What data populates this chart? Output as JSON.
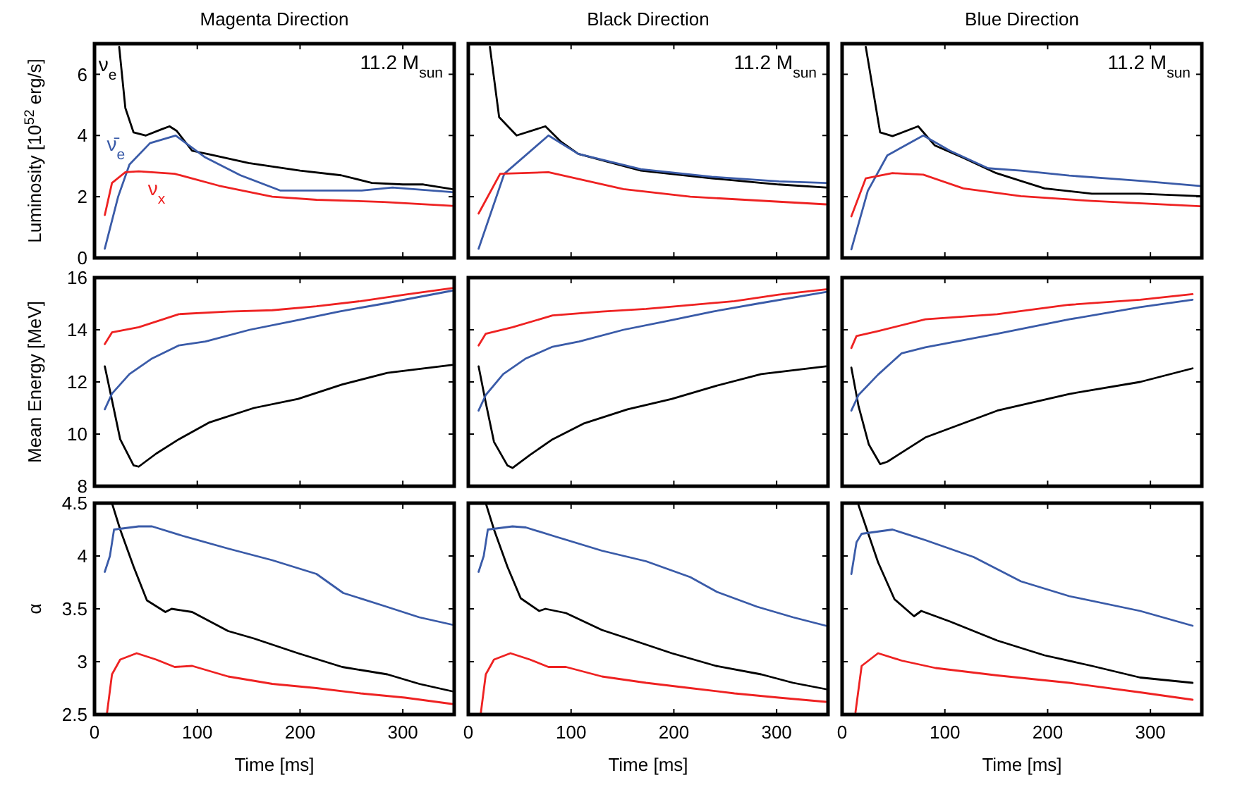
{
  "chart_data": [
    {
      "type": "line",
      "title": "Magenta Direction",
      "ylabel": "Luminosity [10$^{52}$ erg/s]",
      "annotations": [
        "11.2 M$_{sun}$"
      ],
      "xlim": [
        0,
        350
      ],
      "xticks": [
        0,
        100,
        200,
        300
      ],
      "ylim": [
        0,
        7
      ],
      "yticks": [
        0,
        2,
        4,
        6
      ],
      "tick_labels": "y",
      "series": [
        {
          "name": "ν$_{e}$",
          "color": "#000000",
          "x": [
            24,
            30,
            38,
            50,
            65,
            73,
            80,
            95,
            112,
            150,
            200,
            240,
            270,
            300,
            320,
            348
          ],
          "values": [
            6.9,
            4.9,
            4.1,
            4.0,
            4.2,
            4.3,
            4.15,
            3.5,
            3.38,
            3.1,
            2.85,
            2.7,
            2.45,
            2.4,
            2.4,
            2.25
          ]
        },
        {
          "name": "ν̄$_{e}$",
          "color": "#3a5ba8",
          "x": [
            10,
            23,
            34,
            54,
            79,
            107,
            142,
            181,
            216,
            260,
            290,
            348
          ],
          "values": [
            0.3,
            2.0,
            3.05,
            3.75,
            4.0,
            3.3,
            2.7,
            2.2,
            2.2,
            2.2,
            2.3,
            2.15
          ]
        },
        {
          "name": "ν$_{x}$",
          "color": "#ee2222",
          "x": [
            10,
            17,
            30,
            43,
            78,
            121,
            173,
            216,
            281,
            348
          ],
          "values": [
            1.4,
            2.45,
            2.8,
            2.83,
            2.75,
            2.36,
            2.0,
            1.9,
            1.83,
            1.7
          ]
        }
      ]
    },
    {
      "type": "line",
      "title": "Black Direction",
      "annotations": [
        "11.2 M$_{sun}$"
      ],
      "xlim": [
        0,
        350
      ],
      "xticks": [
        0,
        100,
        200,
        300
      ],
      "ylim": [
        0,
        7
      ],
      "yticks": [
        0,
        2,
        4,
        6
      ],
      "tick_labels": false,
      "series": [
        {
          "color": "#000000",
          "x": [
            21,
            30,
            47,
            75,
            90,
            107,
            168,
            237,
            302,
            348
          ],
          "values": [
            6.9,
            4.6,
            4.0,
            4.3,
            3.8,
            3.4,
            2.85,
            2.6,
            2.4,
            2.3
          ]
        },
        {
          "color": "#3a5ba8",
          "x": [
            10,
            35,
            78,
            107,
            168,
            237,
            302,
            348
          ],
          "values": [
            0.3,
            2.75,
            4.0,
            3.4,
            2.9,
            2.65,
            2.5,
            2.45
          ]
        },
        {
          "color": "#ee2222",
          "x": [
            10,
            31,
            78,
            151,
            216,
            348
          ],
          "values": [
            1.45,
            2.75,
            2.8,
            2.25,
            2.0,
            1.75
          ]
        }
      ]
    },
    {
      "type": "line",
      "title": "Blue Direction",
      "annotations": [
        "11.2 M$_{sun}$"
      ],
      "xlim": [
        0,
        350
      ],
      "xticks": [
        0,
        100,
        200,
        300
      ],
      "ylim": [
        0,
        7
      ],
      "yticks": [
        0,
        2,
        4,
        6
      ],
      "tick_labels": false,
      "series": [
        {
          "color": "#000000",
          "x": [
            23,
            37,
            49,
            74,
            90,
            118,
            150,
            197,
            243,
            290,
            348
          ],
          "values": [
            6.9,
            4.1,
            3.98,
            4.3,
            3.68,
            3.27,
            2.77,
            2.27,
            2.1,
            2.1,
            2.02
          ]
        },
        {
          "color": "#3a5ba8",
          "x": [
            9,
            25,
            44,
            79,
            105,
            142,
            174,
            221,
            290,
            348
          ],
          "values": [
            0.28,
            2.19,
            3.35,
            4.0,
            3.5,
            2.93,
            2.85,
            2.69,
            2.52,
            2.35
          ]
        },
        {
          "color": "#ee2222",
          "x": [
            9,
            23,
            49,
            79,
            118,
            174,
            243,
            348
          ],
          "values": [
            1.36,
            2.6,
            2.77,
            2.72,
            2.27,
            2.02,
            1.86,
            1.69
          ]
        }
      ]
    },
    {
      "type": "line",
      "ylabel": "Mean Energy [MeV]",
      "xlim": [
        0,
        350
      ],
      "xticks": [
        0,
        100,
        200,
        300
      ],
      "ylim": [
        8,
        16
      ],
      "yticks": [
        8,
        10,
        12,
        14,
        16
      ],
      "tick_labels": "y",
      "series": [
        {
          "color": "#000000",
          "x": [
            10,
            17,
            25,
            38,
            43,
            60,
            82,
            112,
            155,
            198,
            241,
            285,
            348
          ],
          "values": [
            12.6,
            11.3,
            9.8,
            8.8,
            8.75,
            9.25,
            9.8,
            10.45,
            11.0,
            11.35,
            11.9,
            12.35,
            12.65
          ]
        },
        {
          "color": "#3a5ba8",
          "x": [
            10,
            17,
            34,
            56,
            82,
            108,
            151,
            195,
            238,
            281,
            348
          ],
          "values": [
            10.95,
            11.55,
            12.3,
            12.9,
            13.4,
            13.55,
            14.0,
            14.35,
            14.7,
            15.0,
            15.5
          ]
        },
        {
          "color": "#ee2222",
          "x": [
            10,
            17,
            43,
            82,
            130,
            173,
            216,
            259,
            302,
            348
          ],
          "values": [
            13.45,
            13.9,
            14.1,
            14.6,
            14.7,
            14.75,
            14.9,
            15.1,
            15.35,
            15.6
          ]
        }
      ]
    },
    {
      "type": "line",
      "xlim": [
        0,
        350
      ],
      "xticks": [
        0,
        100,
        200,
        300
      ],
      "ylim": [
        8,
        16
      ],
      "yticks": [
        8,
        10,
        12,
        14,
        16
      ],
      "tick_labels": false,
      "series": [
        {
          "color": "#000000",
          "x": [
            10,
            17,
            25,
            38,
            43,
            60,
            82,
            112,
            155,
            198,
            241,
            285,
            348
          ],
          "values": [
            12.6,
            11.2,
            9.7,
            8.8,
            8.7,
            9.2,
            9.8,
            10.4,
            10.95,
            11.35,
            11.85,
            12.3,
            12.6
          ]
        },
        {
          "color": "#3a5ba8",
          "x": [
            10,
            17,
            34,
            56,
            82,
            108,
            151,
            195,
            238,
            281,
            348
          ],
          "values": [
            10.9,
            11.5,
            12.3,
            12.9,
            13.35,
            13.55,
            14.0,
            14.35,
            14.7,
            15.0,
            15.45
          ]
        },
        {
          "color": "#ee2222",
          "x": [
            10,
            17,
            43,
            82,
            130,
            173,
            216,
            259,
            302,
            348
          ],
          "values": [
            13.4,
            13.85,
            14.1,
            14.55,
            14.7,
            14.8,
            14.95,
            15.1,
            15.35,
            15.55
          ]
        }
      ]
    },
    {
      "type": "line",
      "xlim": [
        0,
        350
      ],
      "xticks": [
        0,
        100,
        200,
        300
      ],
      "ylim": [
        8,
        16
      ],
      "yticks": [
        8,
        10,
        12,
        14,
        16
      ],
      "tick_labels": false,
      "series": [
        {
          "color": "#000000",
          "x": [
            9,
            16,
            26,
            37,
            44,
            81,
            151,
            221,
            290,
            341
          ],
          "values": [
            12.55,
            11.07,
            9.6,
            8.85,
            8.94,
            9.87,
            10.9,
            11.54,
            12.0,
            12.52
          ]
        },
        {
          "color": "#3a5ba8",
          "x": [
            9,
            16,
            35,
            58,
            81,
            151,
            221,
            290,
            341
          ],
          "values": [
            10.9,
            11.5,
            12.28,
            13.1,
            13.33,
            13.85,
            14.4,
            14.87,
            15.15
          ]
        },
        {
          "color": "#ee2222",
          "x": [
            9,
            14,
            35,
            81,
            151,
            221,
            290,
            341
          ],
          "values": [
            13.3,
            13.76,
            13.95,
            14.4,
            14.6,
            14.96,
            15.15,
            15.37
          ]
        }
      ]
    },
    {
      "type": "line",
      "ylabel": "α",
      "xlabel": "Time [ms]",
      "xlim": [
        0,
        350
      ],
      "xticks": [
        0,
        100,
        200,
        300
      ],
      "ylim": [
        2.5,
        4.5
      ],
      "yticks": [
        2.5,
        3,
        3.5,
        4,
        4.5
      ],
      "series": [
        {
          "color": "#000000",
          "x": [
            17,
            25,
            38,
            51,
            69,
            75,
            95,
            130,
            155,
            198,
            241,
            285,
            316,
            348
          ],
          "values": [
            4.5,
            4.25,
            3.9,
            3.58,
            3.47,
            3.5,
            3.47,
            3.29,
            3.22,
            3.08,
            2.95,
            2.88,
            2.79,
            2.72
          ]
        },
        {
          "color": "#3a5ba8",
          "x": [
            10,
            15,
            19,
            43,
            56,
            86,
            130,
            173,
            216,
            242,
            281,
            316,
            348
          ],
          "values": [
            3.85,
            4.0,
            4.25,
            4.28,
            4.28,
            4.19,
            4.07,
            3.96,
            3.83,
            3.65,
            3.53,
            3.42,
            3.35
          ]
        },
        {
          "color": "#ee2222",
          "x": [
            12,
            17,
            25,
            41,
            60,
            78,
            95,
            130,
            173,
            216,
            259,
            302,
            348
          ],
          "values": [
            2.5,
            2.88,
            3.02,
            3.08,
            3.02,
            2.95,
            2.96,
            2.86,
            2.79,
            2.75,
            2.7,
            2.66,
            2.6
          ]
        }
      ]
    },
    {
      "type": "line",
      "xlabel": "Time [ms]",
      "xlim": [
        0,
        350
      ],
      "xticks": [
        0,
        100,
        200,
        300
      ],
      "ylim": [
        2.5,
        4.5
      ],
      "yticks": [
        2.5,
        3,
        3.5,
        4,
        4.5
      ],
      "tick_labels": "x",
      "series": [
        {
          "color": "#000000",
          "x": [
            17,
            25,
            38,
            51,
            69,
            75,
            95,
            130,
            155,
            198,
            241,
            285,
            316,
            348
          ],
          "values": [
            4.5,
            4.25,
            3.9,
            3.6,
            3.48,
            3.5,
            3.46,
            3.3,
            3.22,
            3.08,
            2.96,
            2.88,
            2.8,
            2.74
          ]
        },
        {
          "color": "#3a5ba8",
          "x": [
            10,
            15,
            19,
            43,
            56,
            86,
            130,
            173,
            216,
            242,
            281,
            316,
            348
          ],
          "values": [
            3.85,
            4.0,
            4.25,
            4.28,
            4.27,
            4.18,
            4.05,
            3.95,
            3.8,
            3.66,
            3.52,
            3.42,
            3.34
          ]
        },
        {
          "color": "#ee2222",
          "x": [
            12,
            17,
            25,
            41,
            60,
            78,
            95,
            130,
            173,
            216,
            259,
            302,
            348
          ],
          "values": [
            2.5,
            2.88,
            3.02,
            3.08,
            3.02,
            2.95,
            2.95,
            2.86,
            2.8,
            2.75,
            2.7,
            2.66,
            2.62
          ]
        }
      ]
    },
    {
      "type": "line",
      "xlabel": "Time [ms]",
      "xlim": [
        0,
        350
      ],
      "xticks": [
        0,
        100,
        200,
        300
      ],
      "ylim": [
        2.5,
        4.5
      ],
      "yticks": [
        2.5,
        3,
        3.5,
        4,
        4.5
      ],
      "tick_labels": "x",
      "series": [
        {
          "color": "#000000",
          "x": [
            16,
            35,
            51,
            70,
            77,
            105,
            151,
            197,
            243,
            290,
            341
          ],
          "values": [
            4.48,
            3.94,
            3.59,
            3.43,
            3.48,
            3.38,
            3.2,
            3.06,
            2.96,
            2.85,
            2.8
          ]
        },
        {
          "color": "#3a5ba8",
          "x": [
            9,
            14,
            19,
            49,
            81,
            128,
            174,
            221,
            290,
            341
          ],
          "values": [
            3.83,
            4.13,
            4.21,
            4.25,
            4.15,
            3.99,
            3.76,
            3.62,
            3.48,
            3.34
          ]
        },
        {
          "color": "#ee2222",
          "x": [
            13,
            19,
            35,
            58,
            91,
            151,
            221,
            290,
            341
          ],
          "values": [
            2.52,
            2.96,
            3.08,
            3.01,
            2.94,
            2.87,
            2.8,
            2.71,
            2.64
          ]
        }
      ]
    }
  ]
}
